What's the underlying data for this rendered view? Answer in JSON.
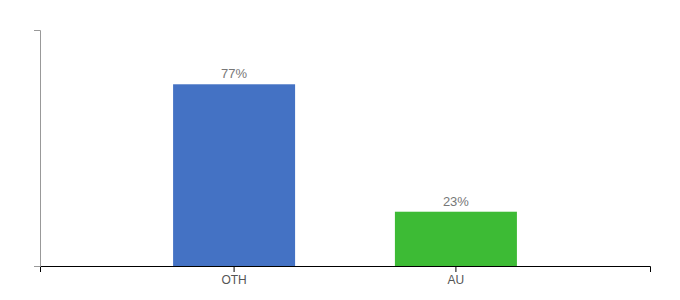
{
  "chart_data": {
    "type": "bar",
    "categories": [
      "OTH",
      "AU"
    ],
    "values": [
      77,
      23
    ],
    "value_labels": [
      "77%",
      "23%"
    ],
    "colors": [
      "#4472c4",
      "#3dbb35"
    ],
    "ylim": [
      0,
      100
    ],
    "data_labels": true,
    "tick_labels": "x",
    "grid": false
  }
}
